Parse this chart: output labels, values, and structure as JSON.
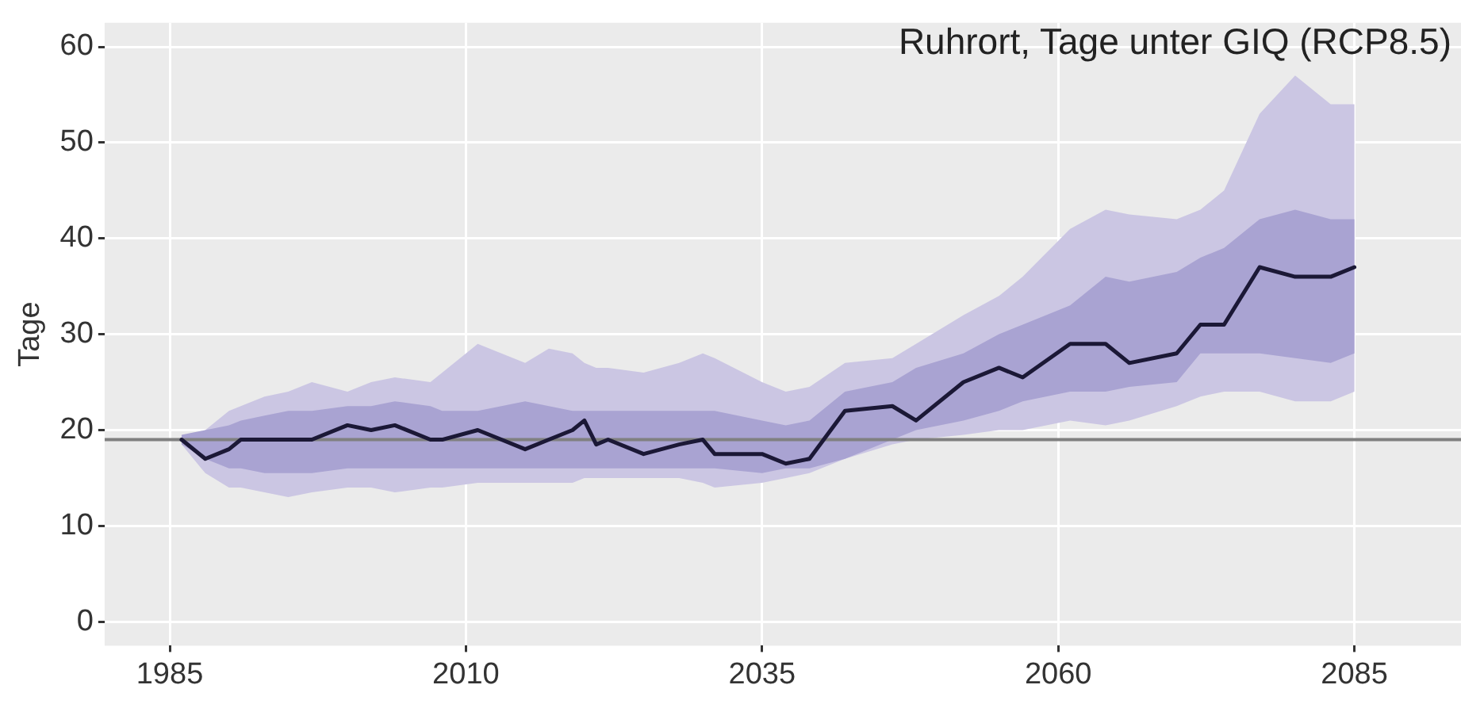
{
  "chart_data": {
    "type": "line",
    "title": "Ruhrort, Tage unter GIQ (RCP8.5)",
    "ylabel": "Tage",
    "x": [
      1986,
      1988,
      1990,
      1991,
      1993,
      1995,
      1997,
      2000,
      2002,
      2004,
      2007,
      2008,
      2011,
      2013,
      2015,
      2017,
      2019,
      2020,
      2021,
      2022,
      2025,
      2028,
      2030,
      2031,
      2035,
      2037,
      2039,
      2042,
      2046,
      2048,
      2052,
      2055,
      2057,
      2061,
      2064,
      2066,
      2070,
      2072,
      2074,
      2077,
      2080,
      2083,
      2085
    ],
    "xlim": [
      1979.5,
      2094
    ],
    "xticks": [
      1985,
      2010,
      2035,
      2060,
      2085
    ],
    "ylim": [
      -2.5,
      62.5
    ],
    "yticks": [
      0,
      10,
      20,
      30,
      40,
      50,
      60
    ],
    "grid": true,
    "legend": false,
    "marker": "none",
    "line_style": "solid",
    "ref_lines": [
      {
        "axis": "y",
        "value": 19,
        "color": "#808080"
      }
    ],
    "series": [
      {
        "color": "#1b1836",
        "values": [
          19,
          17,
          18,
          19,
          19,
          19,
          19,
          20.5,
          20,
          20.5,
          19,
          19,
          20,
          19,
          18,
          19,
          20,
          21,
          18.5,
          19,
          17.5,
          18.5,
          19,
          17.5,
          17.5,
          16.5,
          17,
          22,
          22.5,
          21,
          25,
          26.5,
          25.5,
          29,
          29,
          27,
          28,
          31,
          31,
          37,
          36,
          36,
          37
        ]
      },
      {
        "color": "#cbc6e3",
        "values": [
          null,
          null,
          null,
          null,
          null,
          null,
          null,
          null,
          null,
          null,
          null,
          null,
          null,
          null,
          null,
          null,
          null,
          null,
          null,
          null,
          null,
          null,
          null,
          null,
          null,
          null,
          null,
          null,
          null,
          null,
          null,
          null,
          null,
          null,
          null,
          null,
          null,
          null,
          null,
          null,
          null,
          null,
          null
        ],
        "upper": [
          19,
          20,
          22,
          22.5,
          23.5,
          24,
          25,
          24,
          25,
          25.5,
          25,
          26,
          29,
          28,
          27,
          28.5,
          28,
          27,
          26.5,
          26.5,
          26,
          27,
          28,
          27.5,
          25,
          24,
          24.5,
          27,
          27.5,
          29,
          32,
          34,
          36,
          41,
          43,
          42.5,
          42,
          43,
          45,
          53,
          57,
          54,
          54
        ],
        "lower": [
          18.5,
          15.5,
          14,
          14,
          13.5,
          13,
          13.5,
          14,
          14,
          13.5,
          14,
          14,
          14.5,
          14.5,
          14.5,
          14.5,
          14.5,
          15,
          15,
          15,
          15,
          15,
          14.5,
          14,
          14.5,
          15,
          15.5,
          17,
          18.5,
          19,
          19.5,
          20,
          20,
          21,
          20.5,
          21,
          22.5,
          23.5,
          24,
          24,
          23,
          23,
          24
        ]
      },
      {
        "color": "#a9a3d2",
        "values": [
          null,
          null,
          null,
          null,
          null,
          null,
          null,
          null,
          null,
          null,
          null,
          null,
          null,
          null,
          null,
          null,
          null,
          null,
          null,
          null,
          null,
          null,
          null,
          null,
          null,
          null,
          null,
          null,
          null,
          null,
          null,
          null,
          null,
          null,
          null,
          null,
          null,
          null,
          null,
          null,
          null,
          null,
          null
        ],
        "upper": [
          19.5,
          20,
          20.5,
          21,
          21.5,
          22,
          22,
          22.5,
          22.5,
          23,
          22.5,
          22,
          22,
          22.5,
          23,
          22.5,
          22,
          22,
          22,
          22,
          22,
          22,
          22,
          22,
          21,
          20.5,
          21,
          24,
          25,
          26.5,
          28,
          30,
          31,
          33,
          36,
          35.5,
          36.5,
          38,
          39,
          42,
          43,
          42,
          42
        ],
        "lower": [
          18.5,
          17,
          16,
          16,
          15.5,
          15.5,
          15.5,
          16,
          16,
          16,
          16,
          16,
          16,
          16,
          16,
          16,
          16,
          16,
          16,
          16,
          16,
          16,
          16,
          16,
          15.5,
          16,
          16,
          17,
          19,
          20,
          21,
          22,
          23,
          24,
          24,
          24.5,
          25,
          28,
          28,
          28,
          27.5,
          27,
          28
        ]
      }
    ]
  }
}
